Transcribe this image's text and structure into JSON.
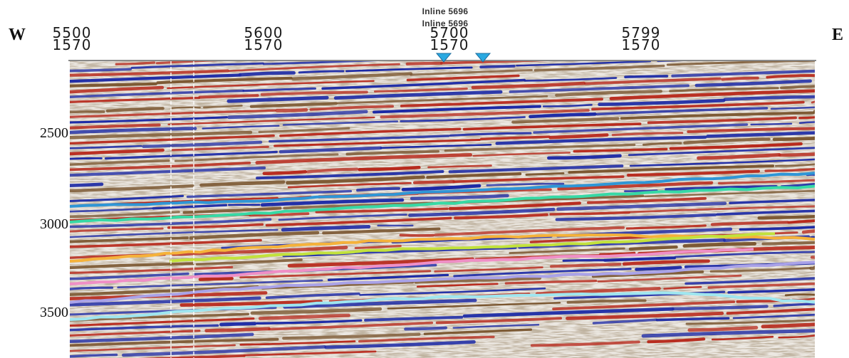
{
  "section": {
    "west_label": "W",
    "east_label": "E",
    "inline_labels": [
      "Inline 5696",
      "Inline 5696"
    ],
    "x_ticks": [
      {
        "line1": "5500",
        "line2": "1570"
      },
      {
        "line1": "5600",
        "line2": "1570"
      },
      {
        "line1": "5700",
        "line2": "1570"
      },
      {
        "line1": "5799",
        "line2": "1570"
      }
    ],
    "y_ticks": [
      "2500",
      "3000",
      "3500"
    ],
    "marker_color": "#29a9e1",
    "horizon_colors": {
      "blue": "#2f96d6",
      "green": "#37d9a5",
      "orange": "#f5b23a",
      "yellow_green": "#c2e23c",
      "pink": "#ef8fc6",
      "lavender": "#a9a2e8",
      "light_cyan": "#9fe6ef"
    },
    "reflector_colors": {
      "red": "#b82a1d",
      "navy": "#1c2aa6",
      "brown": "#7a5630"
    }
  }
}
